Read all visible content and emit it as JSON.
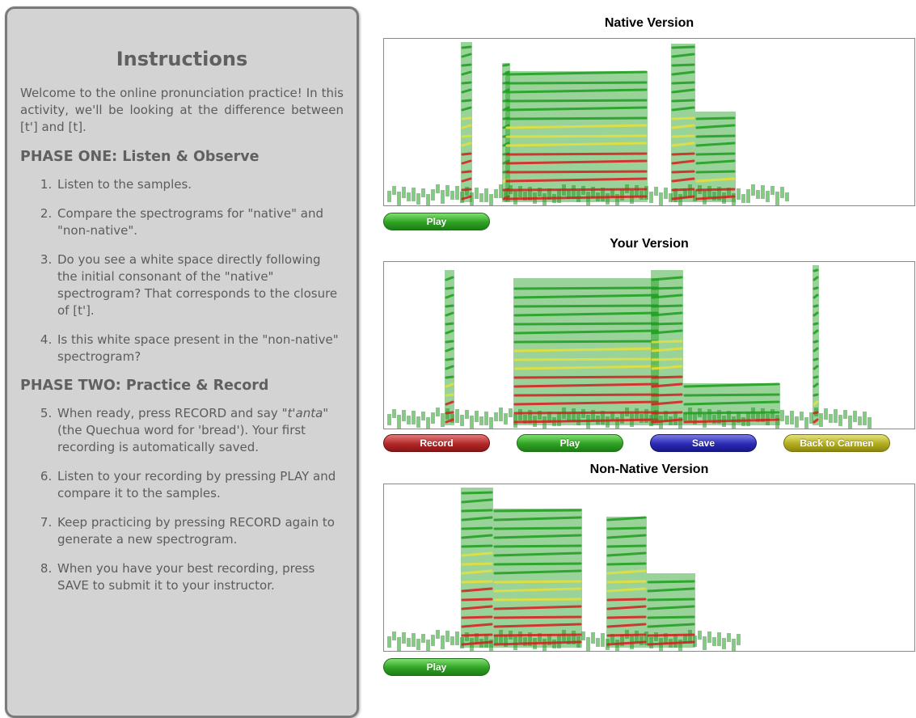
{
  "instructions": {
    "title": "Instructions",
    "intro": "Welcome to the online pronunciation practice! In this activity, we'll be looking at the difference between [t'] and [t].",
    "phase_one": {
      "heading": "PHASE ONE: Listen & Observe",
      "steps": [
        "Listen to the samples.",
        "Compare the spectrograms for \"native\" and \"non-native\".",
        "Do you see a white space directly following the initial consonant of the \"native\" spectrogram? That corresponds to the closure of [t'].",
        "Is this white space present in the \"non-native\" spectrogram?"
      ]
    },
    "phase_two": {
      "heading": "PHASE TWO: Practice & Record",
      "step5_before": "When ready, press RECORD and say ",
      "step5_word": "\"t'anta\"",
      "step5_after": " (the Quechua word for 'bread'). Your first recording is automatically saved.",
      "steps": [
        "Listen to your recording by pressing PLAY and compare it to the samples.",
        "Keep practicing by pressing RECORD again to generate a new spectrogram.",
        "When you have your best recording, press SAVE to submit it to your instructor."
      ]
    }
  },
  "native": {
    "title": "Native Version",
    "play_label": "Play"
  },
  "yours": {
    "title": "Your Version",
    "record_label": "Record",
    "play_label": "Play",
    "save_label": "Save",
    "back_label": "Back to Carmen"
  },
  "nonnative": {
    "title": "Non-Native Version",
    "play_label": "Play"
  },
  "colors": {
    "spectrogram_low": "#1f9e1f",
    "spectrogram_mid": "#e8e03a",
    "spectrogram_high": "#d81e1e",
    "button_green": "#2fa324",
    "button_red": "#b22828",
    "button_blue": "#2a2ab5",
    "button_olive": "#b3ad20"
  }
}
